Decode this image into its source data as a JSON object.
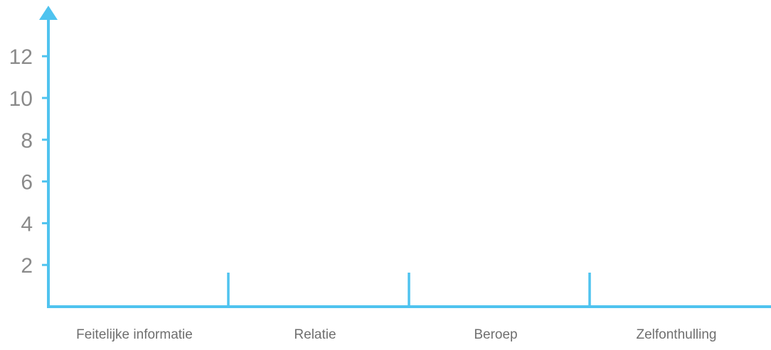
{
  "chart_data": {
    "type": "bar",
    "categories": [
      "Feitelijke informatie",
      "Relatie",
      "Beroep",
      "Zelfonthulling"
    ],
    "values": [
      null,
      null,
      null,
      null
    ],
    "title": "",
    "xlabel": "",
    "ylabel": "",
    "ylim": [
      0,
      14
    ],
    "yticks": [
      2,
      4,
      6,
      8,
      10,
      12
    ],
    "grid": false,
    "axis_color": "#4fc3ef",
    "label_color": "#8a8a8a"
  }
}
